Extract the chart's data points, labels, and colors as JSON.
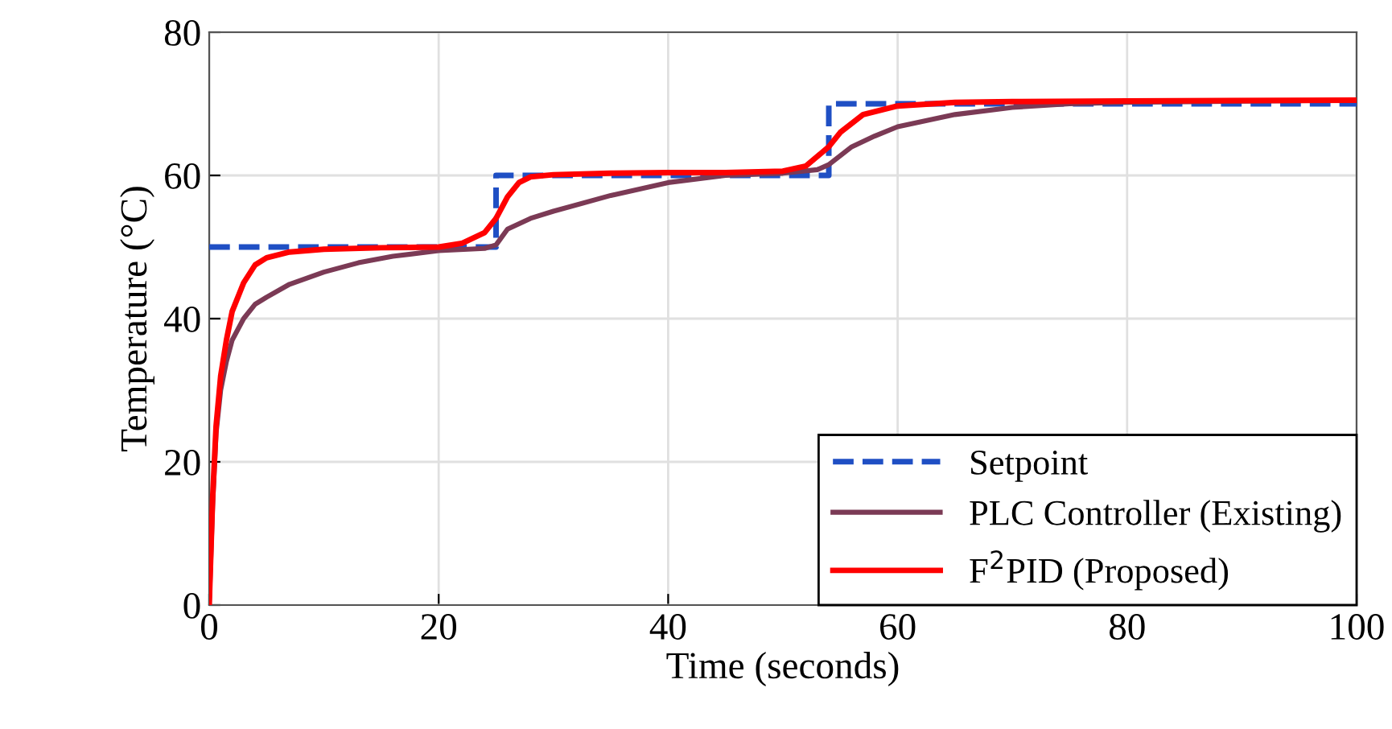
{
  "chart_data": {
    "type": "line",
    "xlabel": "Time (seconds)",
    "ylabel": "Temperature (°C)",
    "xlim": [
      0,
      100
    ],
    "ylim": [
      0,
      80
    ],
    "xticks": [
      0,
      20,
      40,
      60,
      80,
      100
    ],
    "yticks": [
      0,
      20,
      40,
      60,
      80
    ],
    "grid": true,
    "legend": "bottom right",
    "series": [
      {
        "name": "Setpoint",
        "color": "#1f4fc4",
        "line_style": "dashed",
        "x": [
          0,
          25,
          25,
          54,
          54,
          100
        ],
        "values": [
          50,
          50,
          60,
          60,
          70,
          70
        ]
      },
      {
        "name": "PLC Controller (Existing)",
        "color": "#7b3a55",
        "line_style": "solid",
        "x": [
          0,
          0.3,
          0.6,
          1,
          1.5,
          2,
          3,
          4,
          5,
          7,
          10,
          13,
          16,
          20,
          24,
          25,
          26,
          28,
          30,
          35,
          40,
          45,
          50,
          53,
          54,
          56,
          58,
          60,
          65,
          70,
          75,
          80,
          100
        ],
        "values": [
          0,
          14,
          24,
          30,
          34,
          37,
          40,
          42,
          43,
          44.8,
          46.5,
          47.8,
          48.7,
          49.5,
          49.8,
          50.3,
          52.5,
          54,
          55,
          57.2,
          59,
          60,
          60.3,
          60.8,
          61.5,
          64,
          65.5,
          66.8,
          68.5,
          69.5,
          70,
          70.2,
          70.5
        ]
      },
      {
        "name": "F$^{2}$PID (Proposed)",
        "color": "#ff0000",
        "line_style": "solid",
        "x": [
          0,
          0.3,
          0.6,
          1,
          1.5,
          2,
          3,
          4,
          5,
          7,
          10,
          15,
          20,
          22,
          24,
          25,
          26,
          27,
          28,
          30,
          35,
          40,
          45,
          50,
          52,
          54,
          55,
          57,
          60,
          65,
          70,
          80,
          100
        ],
        "values": [
          0,
          15,
          25,
          32,
          37,
          41,
          45,
          47.5,
          48.5,
          49.3,
          49.7,
          49.9,
          50,
          50.5,
          52,
          54,
          57,
          59,
          59.8,
          60.1,
          60.3,
          60.4,
          60.4,
          60.6,
          61.3,
          64,
          66,
          68.5,
          69.7,
          70.2,
          70.3,
          70.4,
          70.5
        ]
      }
    ]
  }
}
